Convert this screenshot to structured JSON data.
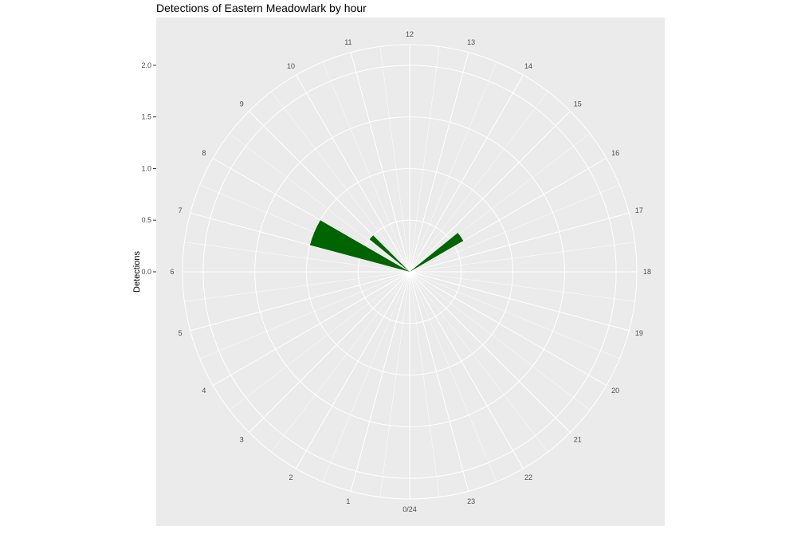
{
  "chart_data": {
    "type": "bar",
    "coord": "polar",
    "title": "Detections of Eastern Meadowlark by hour",
    "xlabel": "",
    "ylabel": "Detections",
    "xlim": [
      0,
      24
    ],
    "ylim": [
      0,
      2.2
    ],
    "y_ticks": [
      0.0,
      0.5,
      1.0,
      1.5,
      2.0
    ],
    "y_tick_labels": [
      "0.0",
      "0.5",
      "1.0",
      "1.5",
      "2.0"
    ],
    "x_ticks": [
      0,
      1,
      2,
      3,
      4,
      5,
      6,
      7,
      8,
      9,
      10,
      11,
      12,
      13,
      14,
      15,
      16,
      17,
      18,
      19,
      20,
      21,
      22,
      23
    ],
    "x_tick_labels": [
      "0/24",
      "1",
      "2",
      "3",
      "4",
      "5",
      "6",
      "7",
      "8",
      "9",
      "10",
      "11",
      "12",
      "13",
      "14",
      "15",
      "16",
      "17",
      "18",
      "19",
      "20",
      "21",
      "22",
      "23"
    ],
    "bars": [
      {
        "xmin": 7.0,
        "xmax": 8.0,
        "value": 1.0
      },
      {
        "xmin": 8.6,
        "xmax": 9.0,
        "value": 0.5
      },
      {
        "xmin": 15.4,
        "xmax": 16.0,
        "value": 0.6
      }
    ],
    "grid": true,
    "legend": "none",
    "colors": {
      "bar": "#006400",
      "panel": "#EBEBEB",
      "grid": "#FFFFFF"
    }
  }
}
